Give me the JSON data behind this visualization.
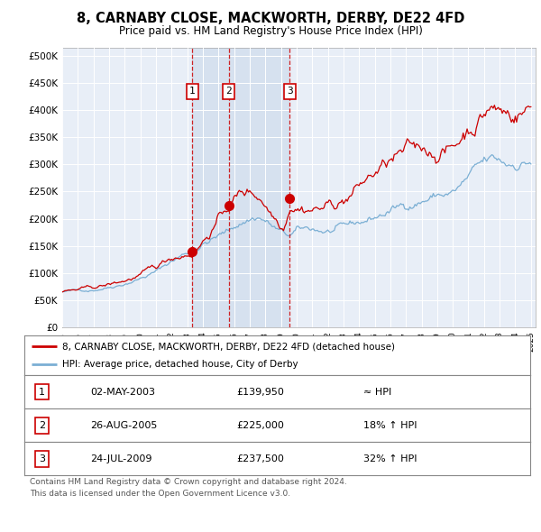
{
  "title": "8, CARNABY CLOSE, MACKWORTH, DERBY, DE22 4FD",
  "subtitle": "Price paid vs. HM Land Registry's House Price Index (HPI)",
  "plot_bg_color": "#e8eef7",
  "ytick_values": [
    0,
    50000,
    100000,
    150000,
    200000,
    250000,
    300000,
    350000,
    400000,
    450000,
    500000
  ],
  "ylim": [
    0,
    515000
  ],
  "xlim_start": 1995.0,
  "xlim_end": 2025.3,
  "xtick_years": [
    1995,
    1996,
    1997,
    1998,
    1999,
    2000,
    2001,
    2002,
    2003,
    2004,
    2005,
    2006,
    2007,
    2008,
    2009,
    2010,
    2011,
    2012,
    2013,
    2014,
    2015,
    2016,
    2017,
    2018,
    2019,
    2020,
    2021,
    2022,
    2023,
    2024,
    2025
  ],
  "sale_dates": [
    2003.33,
    2005.65,
    2009.56
  ],
  "sale_prices": [
    139950,
    225000,
    237500
  ],
  "sale_labels": [
    "1",
    "2",
    "3"
  ],
  "vline_color": "#cc0000",
  "shade_color": "#c5d5e8",
  "sale_marker_color": "#cc0000",
  "legend_line1_label": "8, CARNABY CLOSE, MACKWORTH, DERBY, DE22 4FD (detached house)",
  "legend_line2_label": "HPI: Average price, detached house, City of Derby",
  "legend_line1_color": "#cc0000",
  "legend_line2_color": "#7bafd4",
  "footer_line1": "Contains HM Land Registry data © Crown copyright and database right 2024.",
  "footer_line2": "This data is licensed under the Open Government Licence v3.0.",
  "table_rows": [
    {
      "label": "1",
      "date": "02-MAY-2003",
      "price": "£139,950",
      "hpi": "≈ HPI"
    },
    {
      "label": "2",
      "date": "26-AUG-2005",
      "price": "£225,000",
      "hpi": "18% ↑ HPI"
    },
    {
      "label": "3",
      "date": "24-JUL-2009",
      "price": "£237,500",
      "hpi": "32% ↑ HPI"
    }
  ]
}
